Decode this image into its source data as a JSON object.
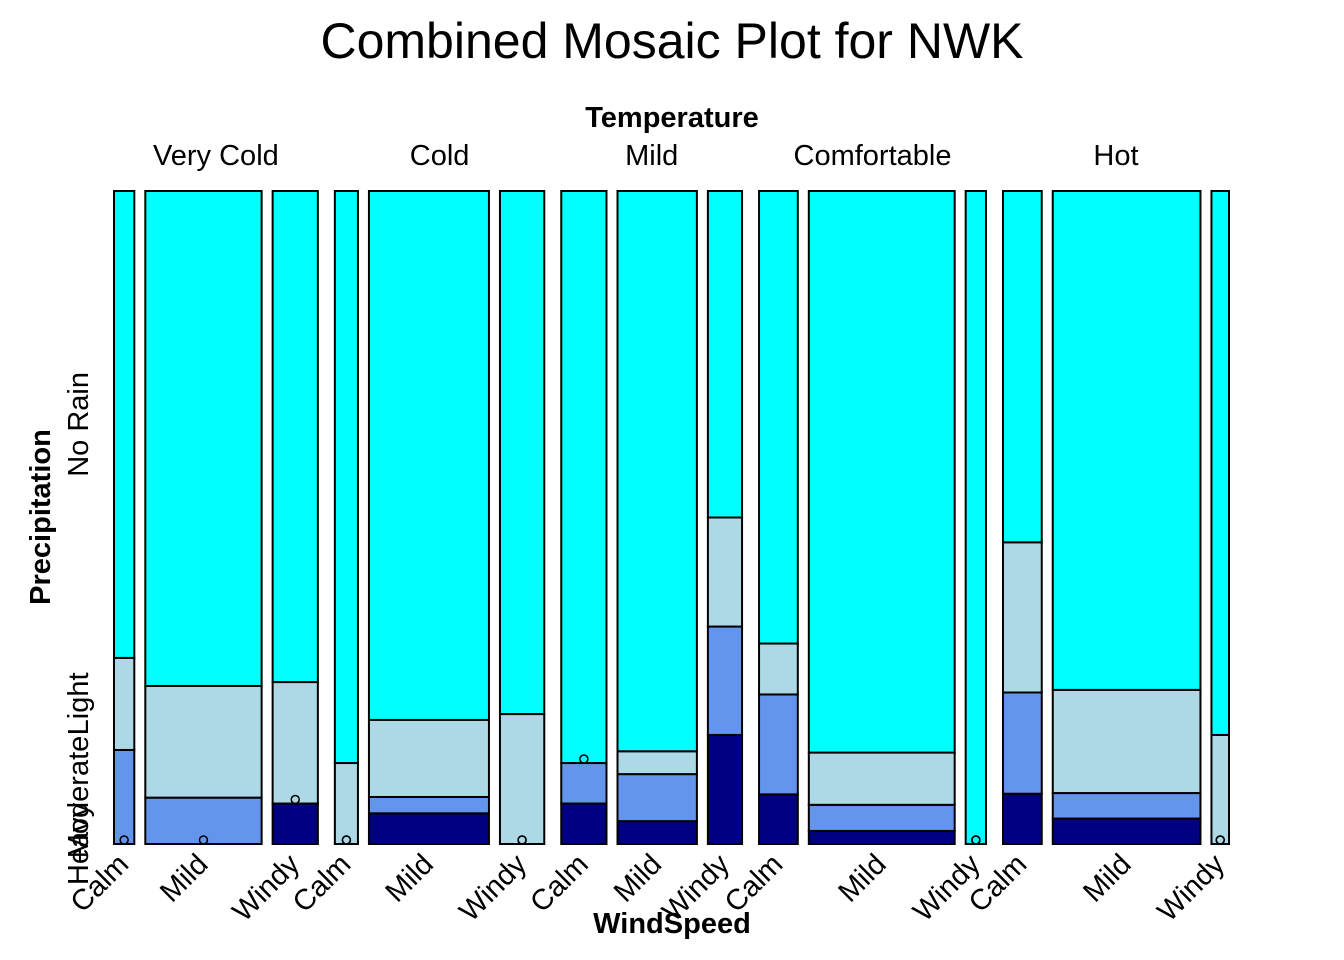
{
  "chart_data": {
    "type": "mosaic",
    "title": "Combined Mosaic Plot for NWK",
    "top_axis_label": "Temperature",
    "xlabel": "WindSpeed",
    "ylabel": "Precipitation",
    "precipitation_levels": [
      "No Rain",
      "Light",
      "Moderate",
      "Heavy"
    ],
    "colors": {
      "No Rain": "#00ffff",
      "Light": "#add8e6",
      "Moderate": "#6495ed",
      "Heavy": "#000080"
    },
    "temperature": [
      {
        "name": "Very Cold",
        "windspeed": [
          {
            "name": "Calm",
            "weight": 0.022,
            "proportions": {
              "No Rain": 0.715,
              "Light": 0.141,
              "Moderate": 0.144,
              "Heavy": 0.0
            }
          },
          {
            "name": "Mild",
            "weight": 0.126,
            "proportions": {
              "No Rain": 0.758,
              "Light": 0.171,
              "Moderate": 0.071,
              "Heavy": 0.0
            }
          },
          {
            "name": "Windy",
            "weight": 0.049,
            "proportions": {
              "No Rain": 0.752,
              "Light": 0.186,
              "Moderate": 0.0,
              "Heavy": 0.062
            }
          }
        ]
      },
      {
        "name": "Cold",
        "windspeed": [
          {
            "name": "Calm",
            "weight": 0.025,
            "proportions": {
              "No Rain": 0.876,
              "Light": 0.124,
              "Moderate": 0.0,
              "Heavy": 0.0
            }
          },
          {
            "name": "Mild",
            "weight": 0.13,
            "proportions": {
              "No Rain": 0.81,
              "Light": 0.118,
              "Moderate": 0.025,
              "Heavy": 0.047
            }
          },
          {
            "name": "Windy",
            "weight": 0.048,
            "proportions": {
              "No Rain": 0.801,
              "Light": 0.199,
              "Moderate": 0.0,
              "Heavy": 0.0
            }
          }
        ]
      },
      {
        "name": "Mild",
        "windspeed": [
          {
            "name": "Calm",
            "weight": 0.049,
            "proportions": {
              "No Rain": 0.876,
              "Light": 0.0,
              "Moderate": 0.062,
              "Heavy": 0.062
            }
          },
          {
            "name": "Mild",
            "weight": 0.086,
            "proportions": {
              "No Rain": 0.858,
              "Light": 0.035,
              "Moderate": 0.072,
              "Heavy": 0.035
            }
          },
          {
            "name": "Windy",
            "weight": 0.037,
            "proportions": {
              "No Rain": 0.5,
              "Light": 0.167,
              "Moderate": 0.166,
              "Heavy": 0.167
            }
          }
        ]
      },
      {
        "name": "Comfortable",
        "windspeed": [
          {
            "name": "Calm",
            "weight": 0.042,
            "proportions": {
              "No Rain": 0.693,
              "Light": 0.078,
              "Moderate": 0.153,
              "Heavy": 0.076
            }
          },
          {
            "name": "Mild",
            "weight": 0.158,
            "proportions": {
              "No Rain": 0.86,
              "Light": 0.08,
              "Moderate": 0.04,
              "Heavy": 0.02
            }
          },
          {
            "name": "Windy",
            "weight": 0.022,
            "proportions": {
              "No Rain": 1.0,
              "Light": 0.0,
              "Moderate": 0.0,
              "Heavy": 0.0
            }
          }
        ]
      },
      {
        "name": "Hot",
        "windspeed": [
          {
            "name": "Calm",
            "weight": 0.042,
            "proportions": {
              "No Rain": 0.538,
              "Light": 0.23,
              "Moderate": 0.155,
              "Heavy": 0.077
            }
          },
          {
            "name": "Mild",
            "weight": 0.16,
            "proportions": {
              "No Rain": 0.764,
              "Light": 0.158,
              "Moderate": 0.039,
              "Heavy": 0.039
            }
          },
          {
            "name": "Windy",
            "weight": 0.019,
            "proportions": {
              "No Rain": 0.833,
              "Light": 0.167,
              "Moderate": 0.0,
              "Heavy": 0.0
            }
          }
        ]
      }
    ]
  }
}
